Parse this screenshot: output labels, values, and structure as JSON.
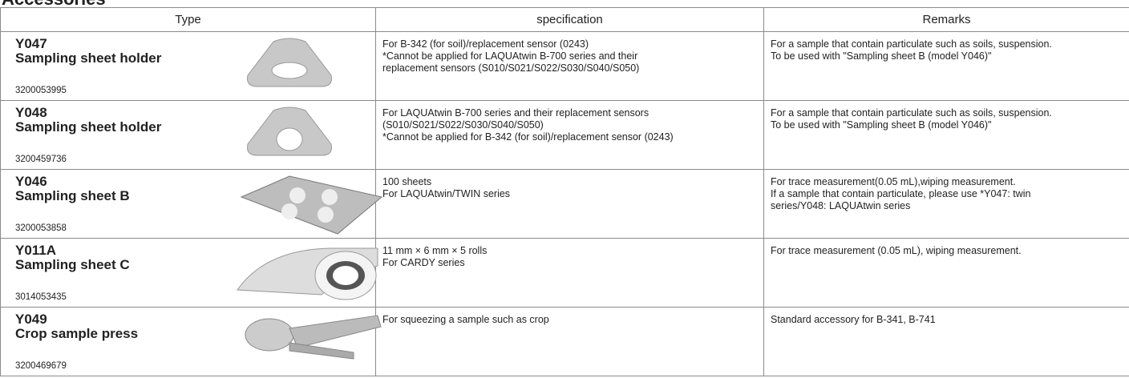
{
  "title": "Accessories",
  "table": {
    "headers": [
      "Type",
      "specification",
      "Remarks"
    ],
    "rows": [
      {
        "model": "Y047",
        "name": "Sampling sheet holder",
        "code": "3200053995",
        "specification": [
          "For B-342 (for soil)/replacement sensor (0243)",
          "*Cannot be applied for LAQUAtwin B-700 series and their",
          "replacement sensors (S010/S021/S022/S030/S040/S050)"
        ],
        "remarks": [
          "For a sample that contain particulate such as soils, suspension.",
          "To be used with \"Sampling sheet B (model Y046)\""
        ]
      },
      {
        "model": "Y048",
        "name": "Sampling sheet holder",
        "code": "3200459736",
        "specification": [
          "For LAQUAtwin B-700 series and their replacement sensors",
          "(S010/S021/S022/S030/S040/S050)",
          "*Cannot be applied for B-342 (for soil)/replacement sensor (0243)"
        ],
        "remarks": [
          "For a sample that contain particulate such as soils, suspension.",
          "To be used with \"Sampling sheet B (model Y046)\""
        ]
      },
      {
        "model": "Y046",
        "name": "Sampling sheet B",
        "code": "3200053858",
        "specification": [
          "100 sheets",
          "For LAQUAtwin/TWIN series"
        ],
        "remarks": [
          "For trace measurement(0.05 mL),wiping measurement.",
          "If a sample that contain particulate, please use *Y047: twin",
          "series/Y048: LAQUAtwin series"
        ]
      },
      {
        "model": "Y011A",
        "name": "Sampling sheet C",
        "code": "3014053435",
        "specification": [
          "11 mm × 6 mm × 5 rolls",
          "For CARDY series"
        ],
        "remarks": [
          "For trace measurement (0.05 mL), wiping measurement."
        ]
      },
      {
        "model": "Y049",
        "name": "Crop sample press",
        "code": "3200469679",
        "specification": [
          "For squeezing a sample such as crop"
        ],
        "remarks": [
          "Standard accessory for B-341, B-741"
        ]
      }
    ]
  }
}
